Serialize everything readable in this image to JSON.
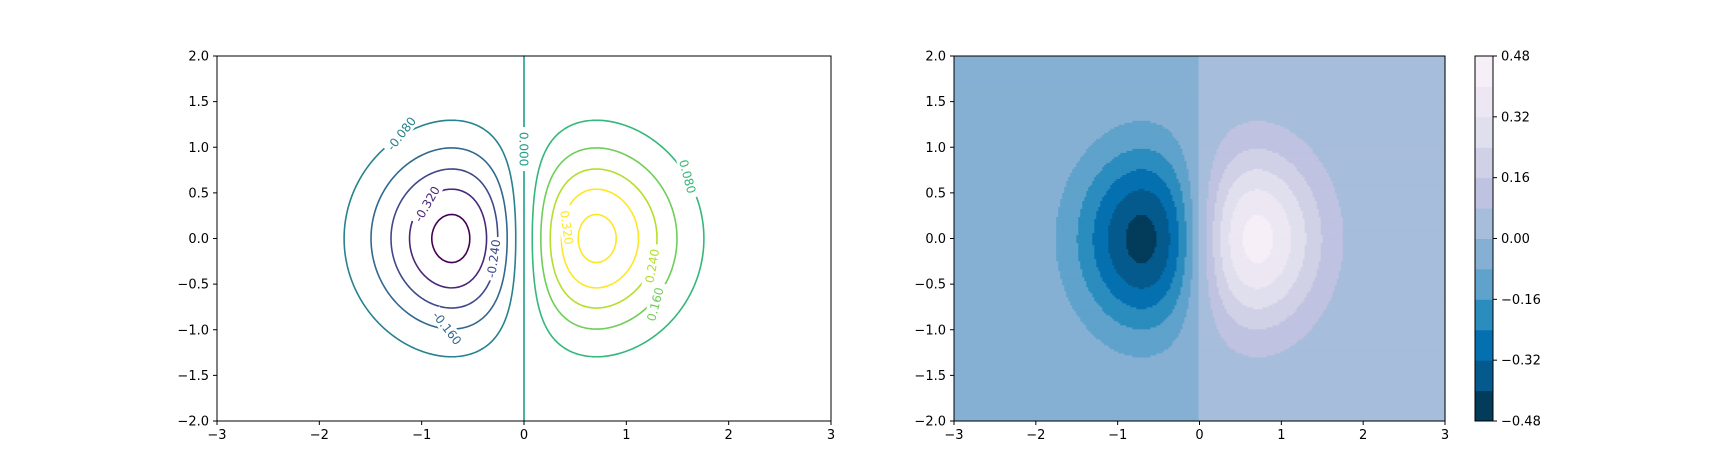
{
  "figure": {
    "background": "#ffffff"
  },
  "chart_data": [
    {
      "type": "contour",
      "title": "",
      "xlabel": "",
      "ylabel": "",
      "xlim": [
        -3,
        3
      ],
      "ylim": [
        -2,
        2
      ],
      "x_ticks": [
        "−3",
        "−2",
        "−1",
        "0",
        "1",
        "2",
        "3"
      ],
      "y_ticks": [
        "−2.0",
        "−1.5",
        "−1.0",
        "−0.5",
        "0.0",
        "0.5",
        "1.0",
        "1.5",
        "2.0"
      ],
      "function": "z = x * exp(-x^2 - y^2)",
      "colormap": "viridis",
      "levels": [
        -0.4,
        -0.32,
        -0.24,
        -0.16,
        -0.08,
        0.0,
        0.08,
        0.16,
        0.24,
        0.32,
        0.4
      ],
      "level_colors": [
        "#440154",
        "#482878",
        "#3e4989",
        "#31688e",
        "#26828e",
        "#1f9e89",
        "#35b779",
        "#6ece58",
        "#b5de2b",
        "#fde725",
        "#fde725"
      ],
      "clabels": [
        {
          "text": "-0.080",
          "x": -1.2,
          "y": 1.15,
          "rot": -52
        },
        {
          "text": "-0.320",
          "x": -0.95,
          "y": 0.38,
          "rot": -60
        },
        {
          "text": "-0.240",
          "x": -0.3,
          "y": -0.22,
          "rot": -82
        },
        {
          "text": "-0.160",
          "x": -0.75,
          "y": -0.98,
          "rot": 52
        },
        {
          "text": "0.000",
          "x": 0.0,
          "y": 0.98,
          "rot": 90
        },
        {
          "text": "0.080",
          "x": 1.6,
          "y": 0.68,
          "rot": 75
        },
        {
          "text": "0.320",
          "x": 0.42,
          "y": 0.12,
          "rot": 82
        },
        {
          "text": "0.240",
          "x": 1.25,
          "y": -0.3,
          "rot": -80
        },
        {
          "text": "0.160",
          "x": 1.28,
          "y": -0.72,
          "rot": -75
        }
      ],
      "grid": false
    },
    {
      "type": "heatmap",
      "subtype": "filled-contour",
      "title": "",
      "xlabel": "",
      "ylabel": "",
      "xlim": [
        -3,
        3
      ],
      "ylim": [
        -2,
        2
      ],
      "x_ticks": [
        "−3",
        "−2",
        "−1",
        "0",
        "1",
        "2",
        "3"
      ],
      "y_ticks": [
        "−2.0",
        "−1.5",
        "−1.0",
        "−0.5",
        "0.0",
        "0.5",
        "1.0",
        "1.5",
        "2.0"
      ],
      "function": "z = x * exp(-x^2 - y^2)",
      "colormap": "PuBu_r",
      "bounds": [
        -0.48,
        -0.4,
        -0.32,
        -0.24,
        -0.16,
        -0.08,
        0.0,
        0.08,
        0.16,
        0.24,
        0.32,
        0.4,
        0.48
      ],
      "band_colors": [
        "#033b5a",
        "#045a8d",
        "#0570b0",
        "#2b8cbe",
        "#5fa2cb",
        "#86b0d3",
        "#a6bddb",
        "#bfc2e0",
        "#d0d1e6",
        "#e0dfee",
        "#ece7f2",
        "#f6eff7"
      ],
      "colorbar": {
        "ticks": [
          "−0.48",
          "−0.32",
          "−0.16",
          "0.00",
          "0.16",
          "0.32",
          "0.48"
        ],
        "tick_values": [
          -0.48,
          -0.32,
          -0.16,
          0.0,
          0.16,
          0.32,
          0.48
        ],
        "range": [
          -0.48,
          0.48
        ]
      },
      "grid": false
    }
  ]
}
